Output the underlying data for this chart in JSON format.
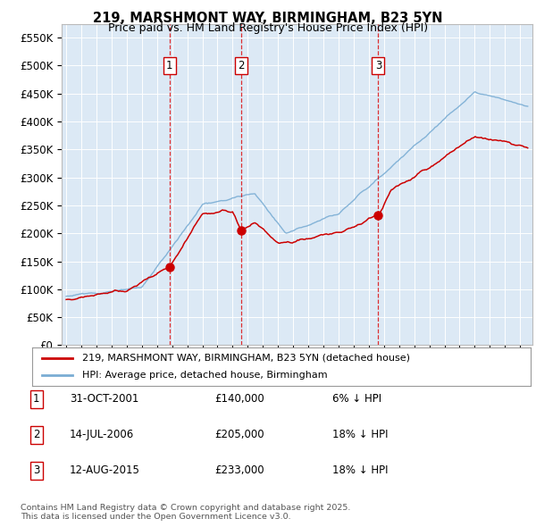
{
  "title_line1": "219, MARSHMONT WAY, BIRMINGHAM, B23 5YN",
  "title_line2": "Price paid vs. HM Land Registry's House Price Index (HPI)",
  "ylim": [
    0,
    575000
  ],
  "yticks": [
    0,
    50000,
    100000,
    150000,
    200000,
    250000,
    300000,
    350000,
    400000,
    450000,
    500000,
    550000
  ],
  "ytick_labels": [
    "£0",
    "£50K",
    "£100K",
    "£150K",
    "£200K",
    "£250K",
    "£300K",
    "£350K",
    "£400K",
    "£450K",
    "£500K",
    "£550K"
  ],
  "xlim_start": 1994.7,
  "xlim_end": 2025.8,
  "bg_color": "#dce9f5",
  "grid_color": "#ffffff",
  "red_line_color": "#cc0000",
  "blue_line_color": "#7aadd4",
  "transactions": [
    {
      "num": 1,
      "date": "31-OCT-2001",
      "price": 140000,
      "pct": "6%",
      "dir": "↓",
      "x": 2001.83
    },
    {
      "num": 2,
      "date": "14-JUL-2006",
      "price": 205000,
      "pct": "18%",
      "dir": "↓",
      "x": 2006.54
    },
    {
      "num": 3,
      "date": "12-AUG-2015",
      "price": 233000,
      "pct": "18%",
      "dir": "↓",
      "x": 2015.62
    }
  ],
  "legend_label_red": "219, MARSHMONT WAY, BIRMINGHAM, B23 5YN (detached house)",
  "legend_label_blue": "HPI: Average price, detached house, Birmingham",
  "copyright_text": "Contains HM Land Registry data © Crown copyright and database right 2025.\nThis data is licensed under the Open Government Licence v3.0."
}
